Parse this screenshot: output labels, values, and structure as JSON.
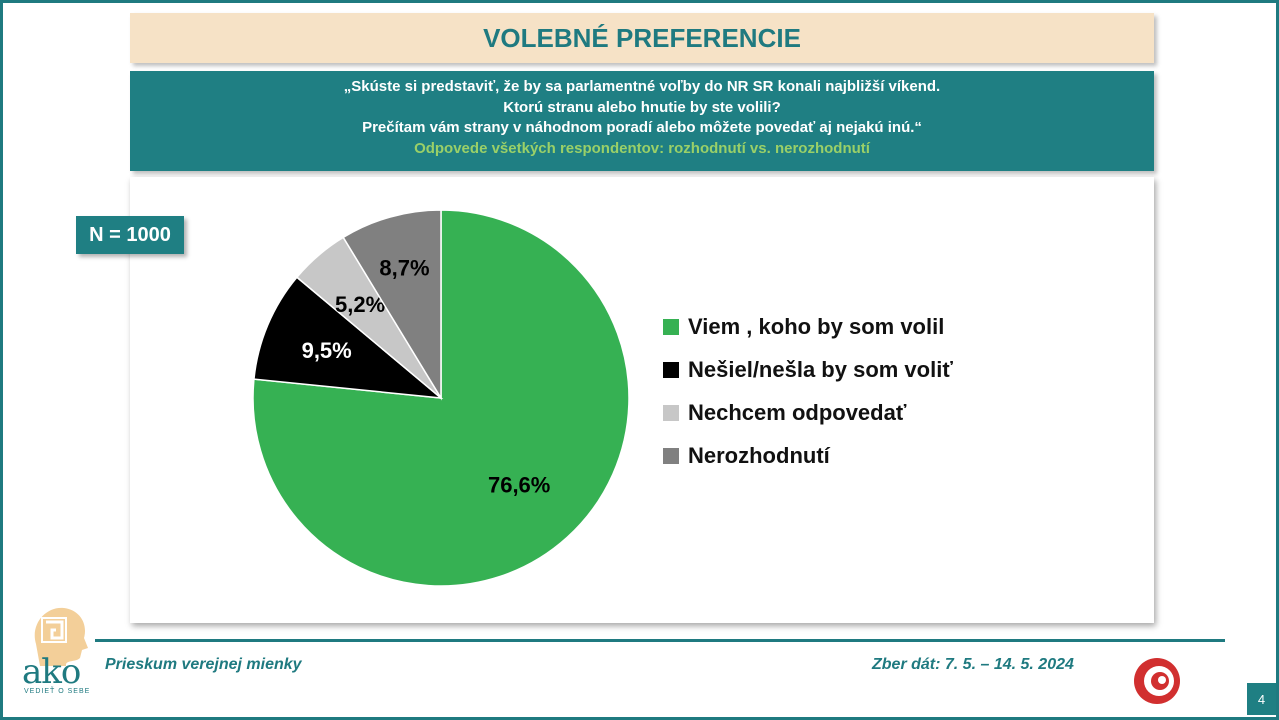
{
  "header": {
    "title": "VOLEBNÉ PREFERENCIE",
    "question_line1": "„Skúste si predstaviť, že by sa parlamentné voľby do NR SR konali najbližší víkend.",
    "question_line2": "Ktorú stranu alebo hnutie by ste volili?",
    "question_line3": "Prečítam vám strany v náhodnom poradí alebo môžete povedať aj nejakú inú.“",
    "subtitle": "Odpovede všetkých respondentov: rozhodnutí vs. nerozhodnutí"
  },
  "sample": {
    "label": "N = 1000"
  },
  "chart_data": {
    "type": "pie",
    "categories": [
      "Viem , koho by som volil",
      "Nešiel/nešla by som voliť",
      "Nechcem odpovedať",
      "Nerozhodnutí"
    ],
    "values": [
      76.6,
      9.5,
      5.2,
      8.7
    ],
    "value_labels": [
      "76,6%",
      "9,5%",
      "5,2%",
      "8,7%"
    ],
    "colors": [
      "#36b153",
      "#000000",
      "#c7c7c7",
      "#808080"
    ],
    "legend_position": "right",
    "start_angle": "12 o'clock, clockwise"
  },
  "footer": {
    "left": "Prieskum verejnej mienky",
    "right": "Zber dát: 7. 5. – 14. 5. 2024",
    "page_number": "4",
    "logo_text": "ako",
    "logo_tagline": "VEDIEŤ O SEBE"
  }
}
